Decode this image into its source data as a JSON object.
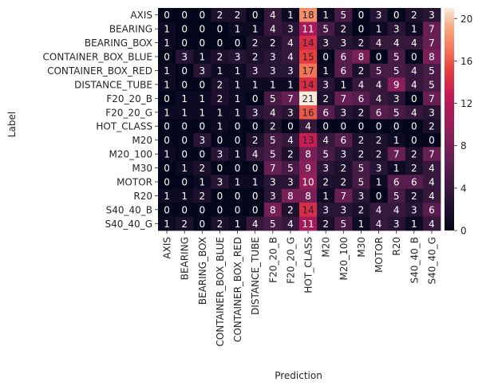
{
  "chart_data": {
    "type": "heatmap",
    "xlabel": "Prediction",
    "ylabel": "Label",
    "x_categories": [
      "AXIS",
      "BEARING",
      "BEARING_BOX",
      "CONTAINER_BOX_BLUE",
      "CONTAINER_BOX_RED",
      "DISTANCE_TUBE",
      "F20_20_B",
      "F20_20_G",
      "HOT_CLASS",
      "M20",
      "M20_100",
      "M30",
      "MOTOR",
      "R20",
      "S40_40_B",
      "S40_40_G"
    ],
    "y_categories": [
      "AXIS",
      "BEARING",
      "BEARING_BOX",
      "CONTAINER_BOX_BLUE",
      "CONTAINER_BOX_RED",
      "DISTANCE_TUBE",
      "F20_20_B",
      "F20_20_G",
      "HOT_CLASS",
      "M20",
      "M20_100",
      "M30",
      "MOTOR",
      "R20",
      "S40_40_B",
      "S40_40_G"
    ],
    "values": [
      [
        0,
        0,
        0,
        2,
        2,
        0,
        4,
        1,
        18,
        1,
        5,
        0,
        3,
        0,
        2,
        3
      ],
      [
        1,
        0,
        0,
        0,
        1,
        1,
        4,
        3,
        11,
        5,
        2,
        0,
        1,
        3,
        1,
        7
      ],
      [
        1,
        0,
        0,
        0,
        0,
        2,
        2,
        4,
        14,
        3,
        3,
        2,
        4,
        4,
        4,
        7
      ],
      [
        0,
        3,
        1,
        2,
        3,
        2,
        3,
        4,
        15,
        0,
        6,
        8,
        0,
        5,
        0,
        8
      ],
      [
        1,
        0,
        3,
        1,
        1,
        3,
        3,
        3,
        17,
        1,
        6,
        2,
        5,
        5,
        4,
        5
      ],
      [
        1,
        0,
        0,
        2,
        1,
        1,
        1,
        1,
        14,
        3,
        1,
        4,
        4,
        9,
        4,
        5
      ],
      [
        0,
        1,
        1,
        2,
        1,
        0,
        5,
        7,
        21,
        2,
        7,
        6,
        4,
        3,
        0,
        7
      ],
      [
        1,
        1,
        1,
        1,
        1,
        3,
        4,
        3,
        16,
        6,
        3,
        2,
        6,
        5,
        4,
        3
      ],
      [
        0,
        0,
        0,
        1,
        0,
        0,
        2,
        0,
        4,
        0,
        0,
        0,
        0,
        0,
        0,
        2
      ],
      [
        0,
        0,
        3,
        0,
        0,
        2,
        5,
        4,
        13,
        4,
        6,
        2,
        2,
        1,
        0,
        0
      ],
      [
        1,
        0,
        0,
        3,
        1,
        4,
        5,
        2,
        8,
        5,
        3,
        2,
        2,
        7,
        2,
        7
      ],
      [
        0,
        1,
        2,
        0,
        0,
        0,
        7,
        5,
        9,
        3,
        2,
        5,
        3,
        1,
        2,
        4
      ],
      [
        0,
        0,
        1,
        3,
        1,
        1,
        3,
        3,
        10,
        2,
        2,
        5,
        1,
        6,
        6,
        4
      ],
      [
        1,
        1,
        2,
        0,
        0,
        0,
        3,
        8,
        8,
        1,
        7,
        3,
        0,
        5,
        2,
        4
      ],
      [
        0,
        0,
        0,
        0,
        0,
        0,
        8,
        2,
        14,
        3,
        3,
        2,
        4,
        4,
        3,
        6
      ],
      [
        1,
        2,
        0,
        2,
        1,
        4,
        5,
        4,
        11,
        2,
        5,
        1,
        4,
        3,
        1,
        4
      ]
    ],
    "vmin": 0,
    "vmax": 21,
    "colormap": "rocket",
    "colorbar_ticks": [
      0,
      4,
      8,
      12,
      16,
      20
    ],
    "colorbar_tick_labels": [
      "0",
      "4",
      "8",
      "12",
      "16",
      "20"
    ]
  }
}
